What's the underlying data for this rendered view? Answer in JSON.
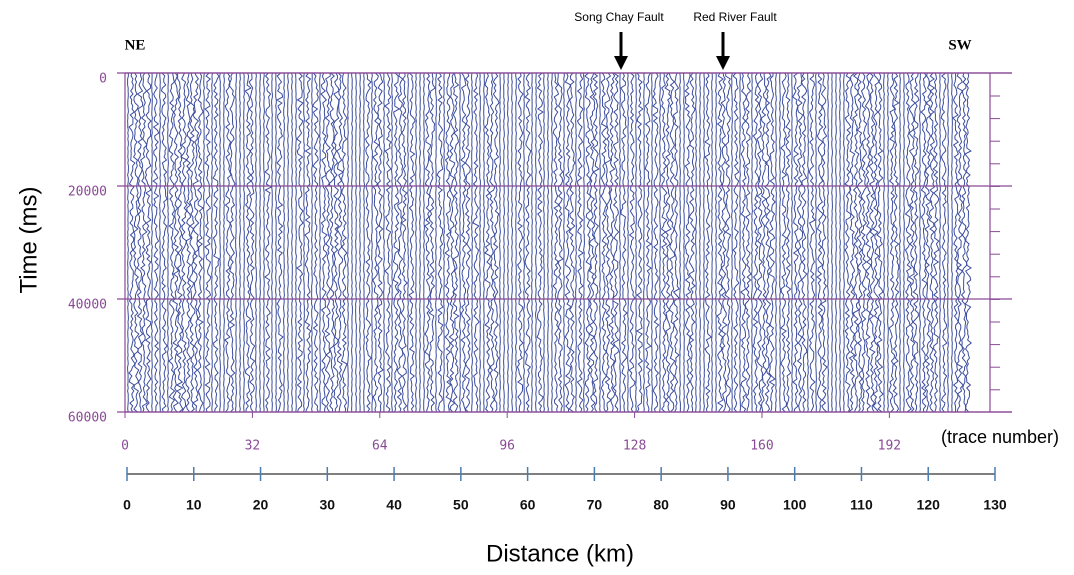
{
  "chart_data": {
    "type": "seismic",
    "y_label": "Time (ms)",
    "x_label": "Distance (km)",
    "x2_label": "(trace number)",
    "left_annotation": "NE",
    "right_annotation": "SW",
    "annotations": [
      "Song Chay Fault",
      "Red River Fault"
    ],
    "ylim": [
      0,
      60000
    ],
    "yticks": [
      0,
      20000,
      40000,
      60000
    ],
    "x2lim": [
      0,
      212
    ],
    "x2ticks": [
      0,
      32,
      64,
      96,
      128,
      160,
      192
    ],
    "xlim": [
      0,
      130
    ],
    "xticks": [
      0,
      10,
      20,
      30,
      40,
      50,
      60,
      70,
      80,
      90,
      100,
      110,
      120,
      130
    ],
    "color": "#3b4c9c",
    "axis_color": "#8a4a96"
  }
}
